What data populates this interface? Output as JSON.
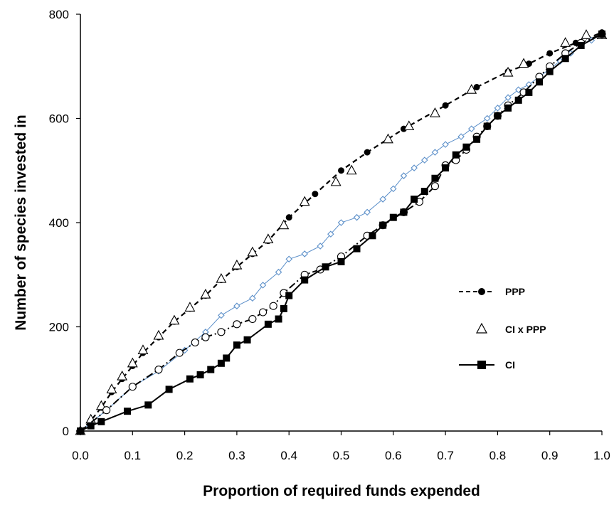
{
  "chart_data": {
    "type": "line",
    "title": "",
    "xlabel": "Proportion of required funds expended",
    "ylabel": "Number of species invested in",
    "xlim": [
      0,
      1
    ],
    "ylim": [
      0,
      800
    ],
    "x_ticks": [
      "0.0",
      "0.1",
      "0.2",
      "0.3",
      "0.4",
      "0.5",
      "0.6",
      "0.7",
      "0.8",
      "0.9",
      "1.0"
    ],
    "y_ticks": [
      "0",
      "200",
      "400",
      "600",
      "800"
    ],
    "grid": false,
    "legend_position": "right",
    "series": [
      {
        "name": "PPP",
        "style": "dashed",
        "marker": "filled-circle",
        "color": "#000000",
        "points": [
          [
            0.0,
            0
          ],
          [
            0.02,
            20
          ],
          [
            0.04,
            45
          ],
          [
            0.06,
            75
          ],
          [
            0.08,
            100
          ],
          [
            0.1,
            125
          ],
          [
            0.12,
            150
          ],
          [
            0.15,
            180
          ],
          [
            0.18,
            210
          ],
          [
            0.21,
            235
          ],
          [
            0.24,
            260
          ],
          [
            0.27,
            290
          ],
          [
            0.3,
            315
          ],
          [
            0.33,
            340
          ],
          [
            0.36,
            365
          ],
          [
            0.4,
            410
          ],
          [
            0.45,
            455
          ],
          [
            0.5,
            500
          ],
          [
            0.55,
            535
          ],
          [
            0.62,
            580
          ],
          [
            0.7,
            625
          ],
          [
            0.76,
            660
          ],
          [
            0.82,
            690
          ],
          [
            0.86,
            705
          ],
          [
            0.9,
            725
          ],
          [
            0.95,
            745
          ],
          [
            1.0,
            765
          ]
        ]
      },
      {
        "name": "CI x PPP",
        "style": "none",
        "marker": "open-triangle",
        "color": "#000000",
        "points": [
          [
            0.0,
            0
          ],
          [
            0.02,
            22
          ],
          [
            0.04,
            48
          ],
          [
            0.06,
            80
          ],
          [
            0.08,
            105
          ],
          [
            0.1,
            130
          ],
          [
            0.12,
            155
          ],
          [
            0.15,
            183
          ],
          [
            0.18,
            212
          ],
          [
            0.21,
            237
          ],
          [
            0.24,
            262
          ],
          [
            0.27,
            292
          ],
          [
            0.3,
            318
          ],
          [
            0.33,
            343
          ],
          [
            0.36,
            368
          ],
          [
            0.39,
            395
          ],
          [
            0.43,
            440
          ],
          [
            0.49,
            478
          ],
          [
            0.52,
            500
          ],
          [
            0.59,
            560
          ],
          [
            0.63,
            585
          ],
          [
            0.68,
            610
          ],
          [
            0.75,
            655
          ],
          [
            0.82,
            688
          ],
          [
            0.85,
            705
          ],
          [
            0.93,
            745
          ],
          [
            0.97,
            760
          ],
          [
            1.0,
            760
          ]
        ]
      },
      {
        "name": "",
        "style": "thin-line",
        "marker": "open-diamond",
        "color": "#5b8fc9",
        "points": [
          [
            0.0,
            0
          ],
          [
            0.05,
            40
          ],
          [
            0.1,
            85
          ],
          [
            0.15,
            115
          ],
          [
            0.2,
            155
          ],
          [
            0.24,
            190
          ],
          [
            0.27,
            222
          ],
          [
            0.3,
            240
          ],
          [
            0.33,
            255
          ],
          [
            0.35,
            280
          ],
          [
            0.38,
            305
          ],
          [
            0.4,
            330
          ],
          [
            0.43,
            340
          ],
          [
            0.46,
            355
          ],
          [
            0.48,
            378
          ],
          [
            0.5,
            400
          ],
          [
            0.53,
            410
          ],
          [
            0.55,
            420
          ],
          [
            0.58,
            445
          ],
          [
            0.6,
            465
          ],
          [
            0.62,
            490
          ],
          [
            0.64,
            505
          ],
          [
            0.66,
            520
          ],
          [
            0.68,
            535
          ],
          [
            0.7,
            550
          ],
          [
            0.73,
            565
          ],
          [
            0.75,
            580
          ],
          [
            0.78,
            600
          ],
          [
            0.8,
            620
          ],
          [
            0.82,
            640
          ],
          [
            0.84,
            655
          ],
          [
            0.86,
            665
          ],
          [
            0.88,
            680
          ],
          [
            0.9,
            695
          ],
          [
            0.92,
            710
          ],
          [
            0.94,
            725
          ],
          [
            0.96,
            740
          ],
          [
            0.98,
            750
          ],
          [
            1.0,
            762
          ]
        ]
      },
      {
        "name": "",
        "style": "dash-dot",
        "marker": "open-circle",
        "color": "#000000",
        "points": [
          [
            0.0,
            0
          ],
          [
            0.05,
            40
          ],
          [
            0.1,
            85
          ],
          [
            0.15,
            118
          ],
          [
            0.19,
            150
          ],
          [
            0.22,
            170
          ],
          [
            0.24,
            180
          ],
          [
            0.27,
            190
          ],
          [
            0.3,
            205
          ],
          [
            0.33,
            215
          ],
          [
            0.35,
            228
          ],
          [
            0.37,
            240
          ],
          [
            0.39,
            265
          ],
          [
            0.43,
            300
          ],
          [
            0.46,
            310
          ],
          [
            0.5,
            335
          ],
          [
            0.55,
            375
          ],
          [
            0.58,
            395
          ],
          [
            0.62,
            420
          ],
          [
            0.65,
            440
          ],
          [
            0.68,
            470
          ],
          [
            0.7,
            510
          ],
          [
            0.72,
            520
          ],
          [
            0.74,
            540
          ],
          [
            0.76,
            565
          ],
          [
            0.78,
            585
          ],
          [
            0.8,
            605
          ],
          [
            0.82,
            625
          ],
          [
            0.85,
            650
          ],
          [
            0.88,
            680
          ],
          [
            0.9,
            700
          ],
          [
            0.93,
            725
          ],
          [
            0.96,
            745
          ],
          [
            1.0,
            762
          ]
        ]
      },
      {
        "name": "CI",
        "style": "solid",
        "marker": "filled-square",
        "color": "#000000",
        "points": [
          [
            0.0,
            0
          ],
          [
            0.02,
            10
          ],
          [
            0.04,
            18
          ],
          [
            0.09,
            38
          ],
          [
            0.13,
            50
          ],
          [
            0.17,
            80
          ],
          [
            0.21,
            100
          ],
          [
            0.23,
            108
          ],
          [
            0.25,
            118
          ],
          [
            0.27,
            130
          ],
          [
            0.28,
            140
          ],
          [
            0.3,
            165
          ],
          [
            0.32,
            175
          ],
          [
            0.36,
            205
          ],
          [
            0.38,
            215
          ],
          [
            0.39,
            235
          ],
          [
            0.4,
            260
          ],
          [
            0.43,
            290
          ],
          [
            0.47,
            315
          ],
          [
            0.5,
            325
          ],
          [
            0.53,
            350
          ],
          [
            0.56,
            375
          ],
          [
            0.58,
            395
          ],
          [
            0.6,
            410
          ],
          [
            0.62,
            420
          ],
          [
            0.64,
            445
          ],
          [
            0.66,
            460
          ],
          [
            0.68,
            485
          ],
          [
            0.7,
            505
          ],
          [
            0.72,
            530
          ],
          [
            0.74,
            545
          ],
          [
            0.76,
            560
          ],
          [
            0.78,
            585
          ],
          [
            0.8,
            605
          ],
          [
            0.82,
            620
          ],
          [
            0.84,
            635
          ],
          [
            0.86,
            650
          ],
          [
            0.88,
            670
          ],
          [
            0.9,
            690
          ],
          [
            0.93,
            715
          ],
          [
            0.96,
            740
          ],
          [
            1.0,
            762
          ]
        ]
      }
    ]
  }
}
